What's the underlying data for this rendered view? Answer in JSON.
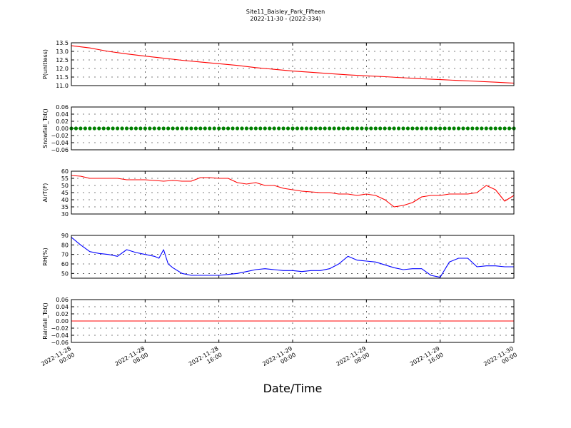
{
  "figure": {
    "title": "Site11_Baisley_Park_Fifteen",
    "subtitle": "2022-11-30 - (2022-334)",
    "xlabel": "Date/Time"
  },
  "chart_data": [
    {
      "type": "line",
      "ylabel": "P(unitless)",
      "ylim": [
        11.0,
        13.5
      ],
      "yticks": [
        "11.0",
        "11.5",
        "12.0",
        "12.5",
        "13.0",
        "13.5"
      ],
      "grid": true,
      "color": "#ff0000",
      "x": [
        0,
        2,
        4,
        6,
        8,
        10,
        12,
        14,
        16,
        18,
        20,
        22,
        24,
        26,
        28,
        30,
        32,
        34,
        36,
        38,
        40,
        42,
        44,
        46,
        48
      ],
      "values": [
        13.33,
        13.2,
        13.0,
        12.85,
        12.72,
        12.6,
        12.48,
        12.38,
        12.28,
        12.18,
        12.05,
        11.95,
        11.85,
        11.78,
        11.7,
        11.63,
        11.57,
        11.52,
        11.46,
        11.4,
        11.35,
        11.3,
        11.25,
        11.2,
        11.14
      ]
    },
    {
      "type": "scatter",
      "ylabel": "Snowfall_Tot()",
      "ylim": [
        -0.06,
        0.06
      ],
      "yticks": [
        "−0.06",
        "−0.04",
        "−0.02",
        "0.00",
        "0.02",
        "0.04",
        "0.06"
      ],
      "grid": true,
      "color": "#008000",
      "x_start": 0,
      "x_end": 48,
      "x_step": 0.5,
      "constant_value": 0.0
    },
    {
      "type": "line",
      "ylabel": "AirT(F)",
      "ylim": [
        30,
        60
      ],
      "yticks": [
        "30",
        "35",
        "40",
        "45",
        "50",
        "55",
        "60"
      ],
      "grid": true,
      "color": "#ff0000",
      "x": [
        0,
        1,
        2,
        3,
        4,
        5,
        6,
        7,
        8,
        9,
        10,
        11,
        12,
        13,
        14,
        15,
        16,
        17,
        18,
        19,
        20,
        21,
        22,
        23,
        24,
        25,
        26,
        27,
        28,
        29,
        30,
        31,
        32,
        33,
        34,
        35,
        36,
        37,
        38,
        39,
        40,
        41,
        42,
        43,
        44,
        45,
        46,
        47,
        48
      ],
      "values": [
        57,
        56.5,
        55,
        55,
        55,
        55,
        54,
        54,
        54,
        53.5,
        53,
        53.5,
        53,
        53,
        55.5,
        55.5,
        55,
        55,
        52,
        51,
        52,
        50,
        50,
        48,
        47,
        46,
        45.5,
        45,
        45,
        44,
        44,
        43,
        44,
        43,
        40,
        35,
        36,
        38,
        42,
        43,
        43,
        44,
        44,
        44,
        45,
        50,
        47,
        39,
        43
      ]
    },
    {
      "type": "line",
      "ylabel": "RH(%)",
      "ylim": [
        45,
        90
      ],
      "yticks": [
        "50",
        "60",
        "70",
        "80",
        "90"
      ],
      "grid": true,
      "color": "#0000ff",
      "x": [
        0,
        1,
        2,
        3,
        4,
        5,
        6,
        7,
        8,
        9,
        9.5,
        10,
        10.5,
        11,
        12,
        13,
        14,
        15,
        16,
        17,
        18,
        19,
        20,
        21,
        22,
        23,
        24,
        25,
        26,
        27,
        28,
        29,
        30,
        31,
        32,
        33,
        34,
        35,
        36,
        37,
        38,
        39,
        40,
        41,
        42,
        43,
        44,
        45,
        46,
        47,
        48
      ],
      "values": [
        88,
        80,
        73,
        71,
        70,
        68,
        75,
        72,
        70,
        68,
        66,
        75,
        60,
        56,
        50,
        48,
        48,
        48,
        48,
        49,
        50,
        52,
        54,
        55,
        54,
        53,
        53,
        52,
        53,
        53,
        55,
        60,
        68,
        64,
        63,
        62,
        59,
        56,
        54,
        55,
        55,
        48,
        46,
        62,
        66,
        66,
        57,
        58,
        58,
        57,
        57
      ]
    },
    {
      "type": "line",
      "ylabel": "Rainfall_Tot()",
      "ylim": [
        -0.06,
        0.06
      ],
      "yticks": [
        "−0.06",
        "−0.04",
        "−0.02",
        "0.00",
        "0.02",
        "0.04",
        "0.06"
      ],
      "grid": true,
      "color": "#ff0000",
      "x": [
        0,
        48
      ],
      "values": [
        0,
        0
      ]
    }
  ],
  "x_axis": {
    "hours": [
      0,
      8,
      16,
      24,
      32,
      40,
      48
    ],
    "tick_labels": [
      [
        "2022-11-28",
        "00:00"
      ],
      [
        "2022-11-28",
        "08:00"
      ],
      [
        "2022-11-28",
        "16:00"
      ],
      [
        "2022-11-29",
        "00:00"
      ],
      [
        "2022-11-29",
        "08:00"
      ],
      [
        "2022-11-29",
        "16:00"
      ],
      [
        "2022-11-30",
        "00:00"
      ]
    ]
  }
}
